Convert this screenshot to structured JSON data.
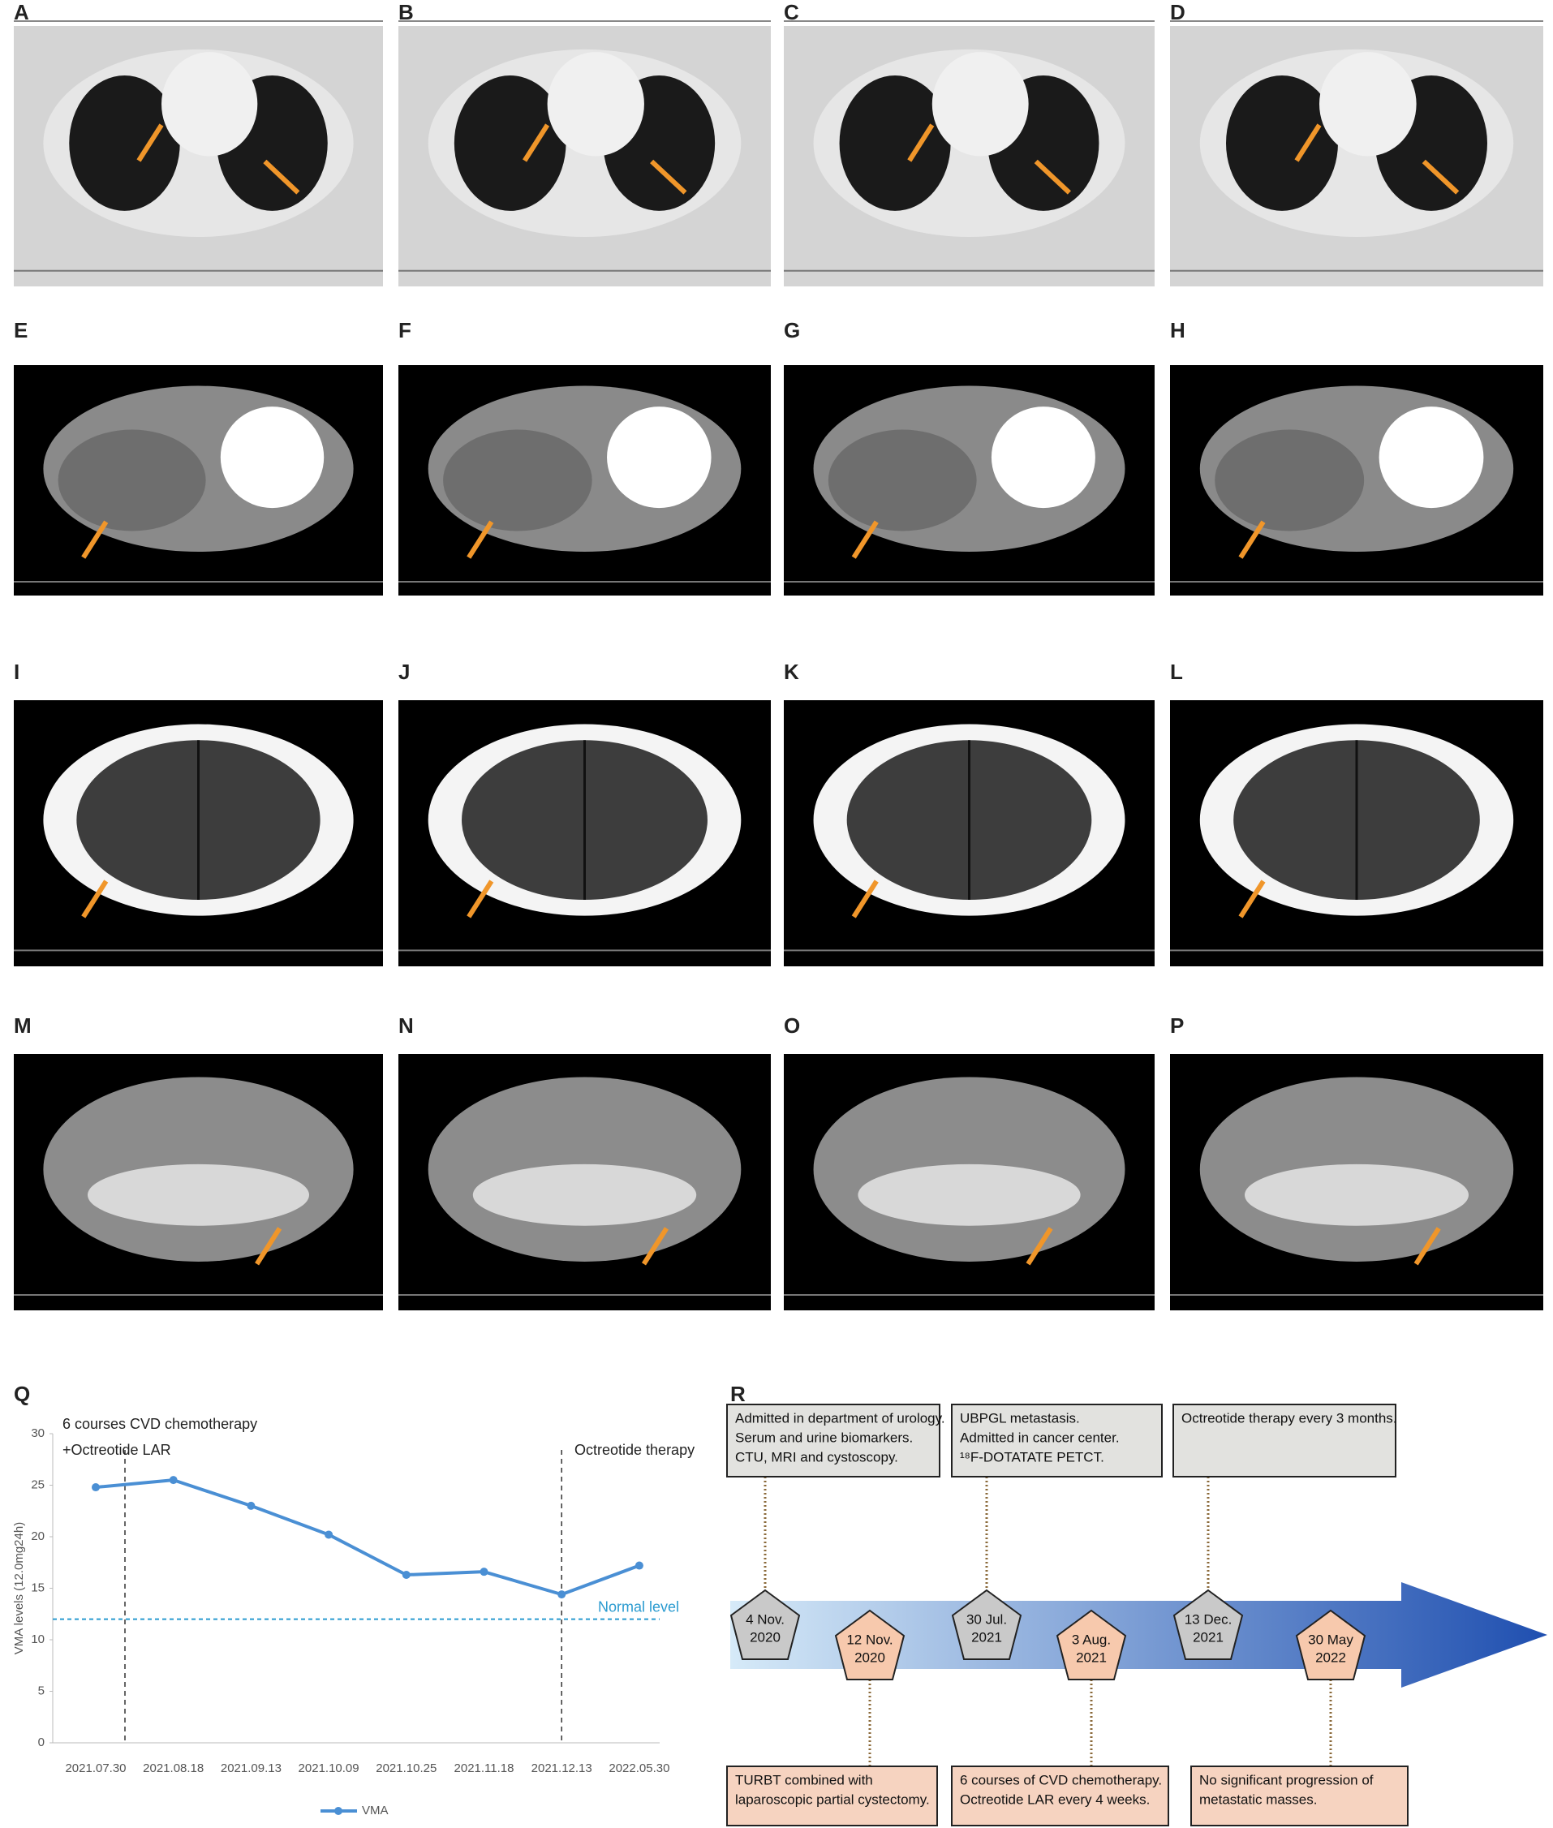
{
  "panels": [
    "A",
    "B",
    "C",
    "D",
    "E",
    "F",
    "G",
    "H",
    "I",
    "J",
    "K",
    "L",
    "M",
    "N",
    "O",
    "P"
  ],
  "chart_data": {
    "type": "line",
    "panel": "Q",
    "y_label": "VMA levels (12.0mg24h)",
    "categories": [
      "2021.07.30",
      "2021.08.18",
      "2021.09.13",
      "2021.10.09",
      "2021.10.25",
      "2021.11.18",
      "2021.12.13",
      "2022.05.30"
    ],
    "series": [
      {
        "name": "VMA",
        "color": "#4a8fd4",
        "values": [
          24.8,
          25.5,
          23.0,
          20.2,
          16.3,
          16.6,
          14.4,
          17.2
        ]
      }
    ],
    "ylim": [
      0,
      30
    ],
    "yticks": [
      0,
      5,
      10,
      15,
      20,
      25,
      30
    ],
    "grid": false,
    "reference_line": {
      "value": 12,
      "label": "Normal level",
      "color": "#2a9bd0"
    },
    "annotations": [
      [
        "6 courses CVD chemotherapy",
        "+Octreotide LAR"
      ],
      [
        "Octreotide  therapy"
      ]
    ]
  },
  "timeline": {
    "panel": "R",
    "top_boxes": [
      [
        "Admitted in department of urology.",
        "Serum and urine biomarkers.",
        "CTU, MRI and cystoscopy."
      ],
      [
        "UBPGL metastasis.",
        "Admitted in cancer center.",
        "¹⁸F-DOTATATE PETCT."
      ],
      [
        "Octreotide therapy every 3 months."
      ]
    ],
    "bottom_boxes": [
      [
        "TURBT combined with",
        "laparoscopic partial cystectomy."
      ],
      [
        "6 courses of CVD chemotherapy.",
        "Octreotide LAR every 4 weeks."
      ],
      [
        "No significant progression of",
        "metastatic masses."
      ]
    ],
    "dates": [
      [
        "4 Nov.",
        "2020"
      ],
      [
        "12 Nov.",
        "2020"
      ],
      [
        "30 Jul.",
        "2021"
      ],
      [
        "3 Aug.",
        "2021"
      ],
      [
        "13 Dec.",
        "2021"
      ],
      [
        "30 May",
        "2022"
      ]
    ]
  }
}
